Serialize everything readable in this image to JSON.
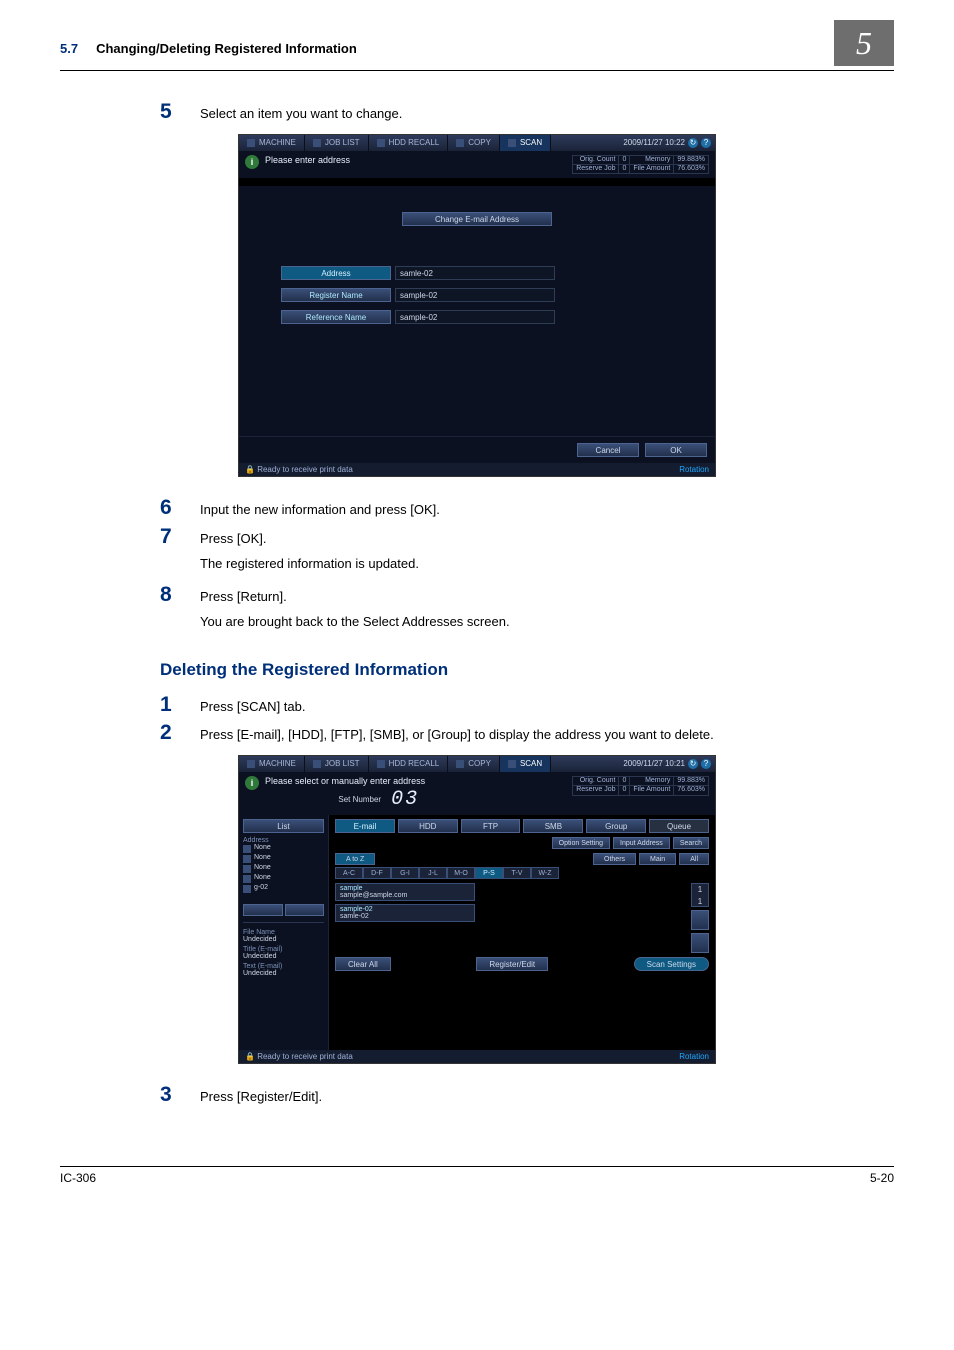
{
  "header": {
    "section_number": "5.7",
    "section_title": "Changing/Deleting Registered Information",
    "chapter": "5"
  },
  "steps_a": [
    {
      "num": "5",
      "text": "Select an item you want to change."
    },
    {
      "num": "6",
      "text": "Input the new information and press [OK]."
    },
    {
      "num": "7",
      "text": "Press [OK].",
      "sub": "The registered information is updated."
    },
    {
      "num": "8",
      "text": "Press [Return].",
      "sub": "You are brought back to the Select Addresses screen."
    }
  ],
  "subheading": "Deleting the Registered Information",
  "steps_b": [
    {
      "num": "1",
      "text": "Press [SCAN] tab."
    },
    {
      "num": "2",
      "text": "Press [E-mail], [HDD], [FTP], [SMB], or [Group] to display the address you want to delete."
    },
    {
      "num": "3",
      "text": "Press [Register/Edit]."
    }
  ],
  "screenshot1": {
    "tabs": [
      "MACHINE",
      "JOB LIST",
      "HDD RECALL",
      "COPY",
      "SCAN"
    ],
    "active_tab": 4,
    "timestamp": "2009/11/27 10:22",
    "info_text": "Please enter address",
    "meters": {
      "orig_count": "Orig. Count",
      "orig_val": "0",
      "reserve": "Reserve Job",
      "reserve_val": "0",
      "memory": "Memory",
      "memory_val": "99.883%",
      "file": "File Amount",
      "file_val": "76.603%"
    },
    "change_button": "Change E-mail Address",
    "rows": [
      {
        "label": "Address",
        "value": "samle-02",
        "selected": true
      },
      {
        "label": "Register Name",
        "value": "sample-02",
        "selected": false
      },
      {
        "label": "Reference Name",
        "value": "sample-02",
        "selected": false
      }
    ],
    "cancel": "Cancel",
    "ok": "OK",
    "status": "Ready to receive print data",
    "rotation": "Rotation"
  },
  "screenshot2": {
    "tabs": [
      "MACHINE",
      "JOB LIST",
      "HDD RECALL",
      "COPY",
      "SCAN"
    ],
    "active_tab": 4,
    "timestamp": "2009/11/27 10:21",
    "info_text": "Please select or manually enter address",
    "set_number_label": "Set Number",
    "set_number": "03",
    "meters": {
      "orig_count": "Orig. Count",
      "orig_val": "0",
      "reserve": "Reserve Job",
      "reserve_val": "0",
      "memory": "Memory",
      "memory_val": "99.883%",
      "file": "File Amount",
      "file_val": "76.603%"
    },
    "side": {
      "list": "List",
      "address_label": "Address",
      "items": [
        "None",
        "None",
        "None",
        "None",
        "g-02"
      ],
      "file_name_label": "File Name",
      "file_name": "Undecided",
      "title_label": "Title (E-mail)",
      "title": "Undecided",
      "text_label": "Text (E-mail)",
      "text": "Undecided"
    },
    "categories": [
      "E-mail",
      "HDD",
      "FTP",
      "SMB",
      "Group",
      "Queue"
    ],
    "active_category": 0,
    "sub_buttons": [
      "Option Setting",
      "Input Address",
      "Search"
    ],
    "filter_buttons": [
      "A to Z",
      "Others",
      "Main",
      "All"
    ],
    "active_filter": 0,
    "alpha": [
      "A-C",
      "D-F",
      "G-I",
      "J-L",
      "M-O",
      "P-S",
      "T-V",
      "W-Z"
    ],
    "active_alpha": 5,
    "results": [
      {
        "name": "sample",
        "addr": "sample@sample.com"
      },
      {
        "name": "sample-02",
        "addr": "samle-02"
      }
    ],
    "scroll_page": "1",
    "scroll_total": "1",
    "clear_all": "Clear All",
    "register_edit": "Register/Edit",
    "scan_settings": "Scan Settings",
    "status": "Ready to receive print data",
    "rotation": "Rotation"
  },
  "footer": {
    "left": "IC-306",
    "right": "5-20"
  }
}
